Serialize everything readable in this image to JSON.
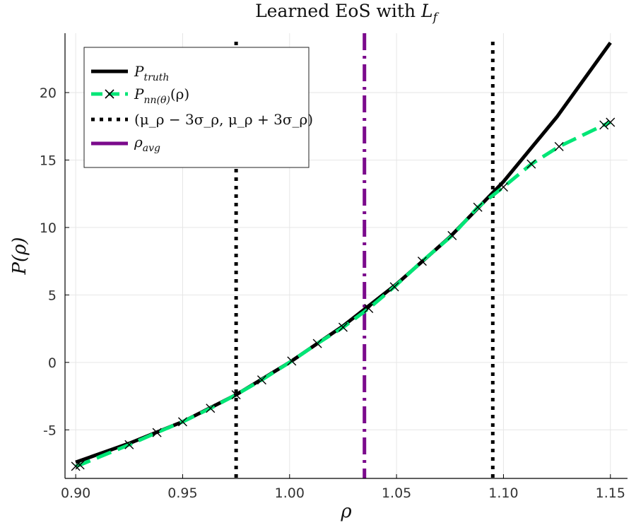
{
  "chart_data": {
    "type": "line",
    "title": "Learned EoS with L_f",
    "title_parts": {
      "text": "Learned EoS with ",
      "math": "L",
      "math_sub": "f"
    },
    "xlabel": "ρ",
    "ylabel": "P(ρ)",
    "xlim": [
      0.895,
      1.158
    ],
    "ylim": [
      -8.6,
      24.4
    ],
    "x_ticks": [
      0.9,
      0.95,
      1.0,
      1.05,
      1.1,
      1.15
    ],
    "x_tick_labels": [
      "0.90",
      "0.95",
      "1.00",
      "1.05",
      "1.10",
      "1.15"
    ],
    "y_ticks": [
      -5,
      0,
      5,
      10,
      15,
      20
    ],
    "y_tick_labels": [
      "-5",
      "0",
      "5",
      "10",
      "15",
      "20"
    ],
    "grid": true,
    "legend_position": "top-left",
    "series": [
      {
        "name": "P_truth",
        "legend_label": {
          "base": "P",
          "sub": "truth",
          "rest": ""
        },
        "style": "solid",
        "color": "#000000",
        "x": [
          0.9,
          0.925,
          0.95,
          0.975,
          1.0,
          1.025,
          1.05,
          1.075,
          1.1,
          1.125,
          1.15
        ],
        "y": [
          -7.4,
          -6.0,
          -4.4,
          -2.4,
          0.0,
          2.7,
          5.8,
          9.3,
          13.4,
          18.2,
          23.7
        ]
      },
      {
        "name": "P_nn(θ)(ρ)",
        "legend_label": {
          "base": "P",
          "sub": "nn(θ)",
          "rest": "(ρ)"
        },
        "style": "dashed",
        "marker": "x",
        "color": "#00e676",
        "x": [
          0.9,
          0.902,
          0.925,
          0.938,
          0.95,
          0.963,
          0.975,
          0.987,
          1.001,
          1.013,
          1.025,
          1.037,
          1.049,
          1.062,
          1.076,
          1.088,
          1.1,
          1.113,
          1.126,
          1.147,
          1.15
        ],
        "y": [
          -7.7,
          -7.6,
          -6.1,
          -5.2,
          -4.4,
          -3.4,
          -2.4,
          -1.3,
          0.1,
          1.4,
          2.6,
          4.0,
          5.6,
          7.5,
          9.4,
          11.5,
          13.0,
          14.7,
          16.0,
          17.6,
          17.8
        ]
      },
      {
        "name": "(μ_ρ − 3σ_ρ, μ_ρ + 3σ_ρ)",
        "legend_label": {
          "text": "(μ_ρ − 3σ_ρ, μ_ρ + 3σ_ρ)"
        },
        "style": "dotted-vertical",
        "color": "#000000",
        "x_values": [
          0.975,
          1.095
        ]
      },
      {
        "name": "ρ_avg",
        "legend_label": {
          "base": "ρ",
          "sub": "avg",
          "rest": ""
        },
        "style": "dashdot-vertical",
        "color": "#7b0a8c",
        "x_values": [
          1.035
        ]
      }
    ]
  }
}
